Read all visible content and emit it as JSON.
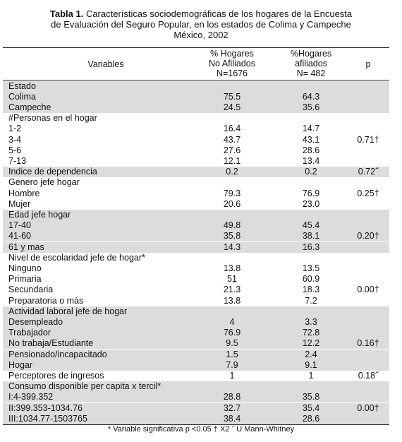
{
  "title": {
    "label": "Tabla 1.",
    "lines": [
      "Características sociodemográficas de los hogares de la Encuesta",
      "de Evaluación del Seguro Popular, en los estados de Colima y Campeche",
      "México, 2002"
    ]
  },
  "table": {
    "header": [
      [
        "Variables"
      ],
      [
        "% Hogares",
        "No Afiliados",
        "N=1676"
      ],
      [
        "%Hogares",
        "afiliados",
        "N= 482"
      ],
      [
        "p"
      ]
    ],
    "rows": [
      {
        "shaded": true,
        "variable": "Estado"
      },
      {
        "shaded": true,
        "variable": "Colima",
        "no_afiliados": "75.5",
        "afiliados": "64.3"
      },
      {
        "shaded": true,
        "variable": "Campeche",
        "no_afiliados": "24.5",
        "afiliados": "35.6"
      },
      {
        "shaded": false,
        "variable": "#Personas en el hogar"
      },
      {
        "shaded": false,
        "variable": "1-2",
        "no_afiliados": "16.4",
        "afiliados": "14.7"
      },
      {
        "shaded": false,
        "variable": "3-4",
        "no_afiliados": "43.7",
        "afiliados": "43.1",
        "p": "0.71†"
      },
      {
        "shaded": false,
        "variable": "5-6",
        "no_afiliados": "27.6",
        "afiliados": "28.6"
      },
      {
        "shaded": false,
        "variable": "7-13",
        "no_afiliados": "12.1",
        "afiliados": "13.4"
      },
      {
        "shaded": true,
        "variable": "Indice de dependencia",
        "no_afiliados": "0.2",
        "afiliados": "0.2",
        "p": "0.72˝"
      },
      {
        "shaded": false,
        "variable": "Genero jefe hogar"
      },
      {
        "shaded": false,
        "variable": "Hombre",
        "no_afiliados": "79.3",
        "afiliados": "76.9",
        "p": "0.25†"
      },
      {
        "shaded": false,
        "variable": "Mujer",
        "no_afiliados": "20.6",
        "afiliados": "23.0"
      },
      {
        "shaded": true,
        "variable": "Edad jefe hogar"
      },
      {
        "shaded": true,
        "variable": "17-40",
        "no_afiliados": "49.8",
        "afiliados": "45.4"
      },
      {
        "shaded": true,
        "variable": "41-60",
        "no_afiliados": "35.8",
        "afiliados": "38.1",
        "p": "0.20†"
      },
      {
        "shaded": true,
        "variable": "61 y mas",
        "no_afiliados": "14.3",
        "afiliados": "16.3"
      },
      {
        "shaded": false,
        "variable": "Nivel de escolaridad jefe de hogar*"
      },
      {
        "shaded": false,
        "variable": "Ninguno",
        "no_afiliados": "13.8",
        "afiliados": "13.5"
      },
      {
        "shaded": false,
        "variable": "Primaria",
        "no_afiliados": "51",
        "afiliados": "60.9"
      },
      {
        "shaded": false,
        "variable": "Secundaria",
        "no_afiliados": "21.3",
        "afiliados": "18.3",
        "p": "0.00†"
      },
      {
        "shaded": false,
        "variable": "Preparatoria o más",
        "no_afiliados": "13.8",
        "afiliados": "7.2"
      },
      {
        "shaded": true,
        "variable": "Actividad laboral jefe de hogar"
      },
      {
        "shaded": true,
        "variable": "Desempleado",
        "no_afiliados": "4",
        "afiliados": "3.3"
      },
      {
        "shaded": true,
        "variable": "Trabajador",
        "no_afiliados": "76.9",
        "afiliados": "72.8"
      },
      {
        "shaded": true,
        "variable": "No trabaja/Estudiante",
        "no_afiliados": "9.5",
        "afiliados": "12.2",
        "p": "0.16†"
      },
      {
        "shaded": true,
        "variable": "Pensionado/incapacitado",
        "no_afiliados": "1.5",
        "afiliados": "2.4"
      },
      {
        "shaded": true,
        "variable": "Hogar",
        "no_afiliados": "7.9",
        "afiliados": "9.1"
      },
      {
        "shaded": false,
        "variable": "Perceptores de ingresos",
        "no_afiliados": "1",
        "afiliados": "1",
        "p": "0.18˝"
      },
      {
        "shaded": true,
        "variable": "Consumo disponible per capita x  tercil*"
      },
      {
        "shaded": true,
        "variable": "I:4-399.352",
        "no_afiliados": "28.8",
        "afiliados": "35.8"
      },
      {
        "shaded": true,
        "variable": "II:399.353-1034.76",
        "no_afiliados": "32.7",
        "afiliados": "35.4",
        "p": "0.00†"
      },
      {
        "shaded": true,
        "variable": "III:1034.77-1503765",
        "no_afiliados": "38.4",
        "afiliados": "28.6"
      }
    ]
  },
  "footnote": "* Variable significativa p <0.05  †  X2  ˝  U Mann-Whitney"
}
